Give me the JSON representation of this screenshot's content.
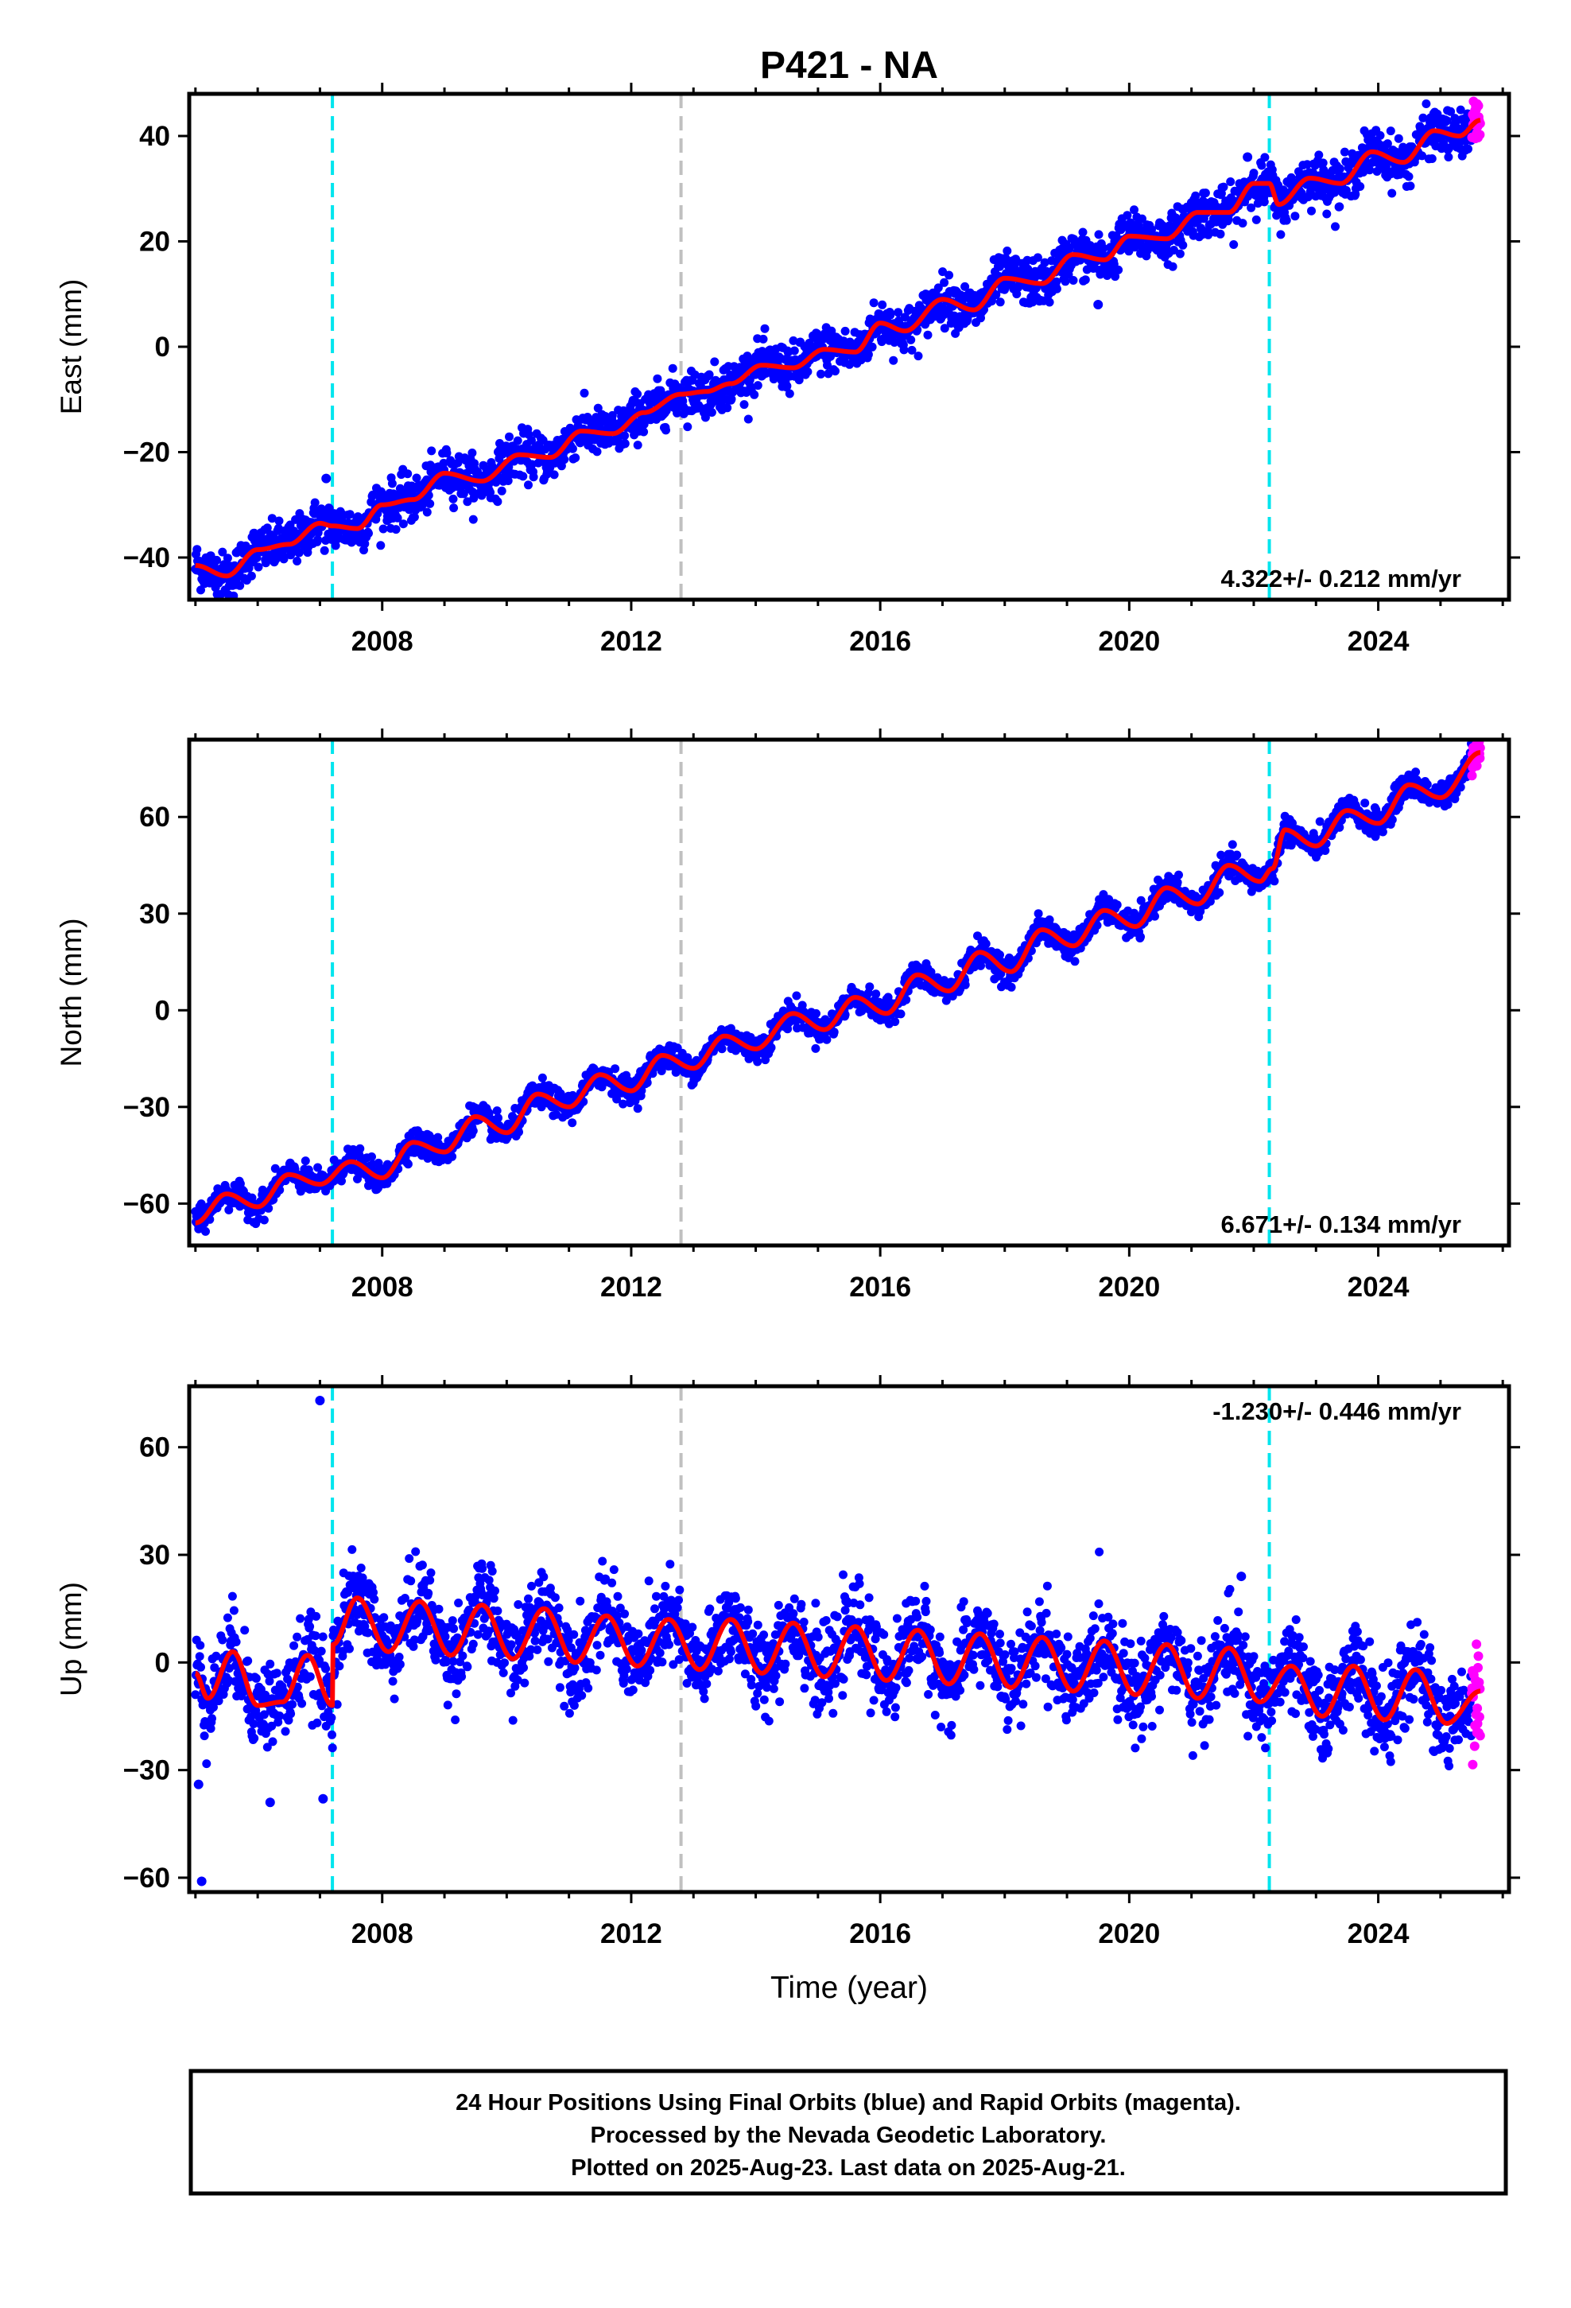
{
  "chart_data": {
    "title": "P421 - NA",
    "type": "scatter",
    "xlabel": "Time (year)",
    "xlim": [
      2004.9,
      2026.1
    ],
    "xticks": [
      2008,
      2012,
      2016,
      2020,
      2024
    ],
    "vertical_markers": [
      {
        "x": 2007.2,
        "style": "dashed",
        "color": "#00e5ee"
      },
      {
        "x": 2012.8,
        "style": "dashed",
        "color": "#c0c0c0"
      },
      {
        "x": 2022.25,
        "style": "dashed",
        "color": "#00e5ee"
      }
    ],
    "series_legend": {
      "final_orbits": "blue",
      "rapid_orbits": "magenta",
      "model_fit": "red"
    },
    "colors": {
      "final": "#0000ff",
      "rapid": "#ff00ff",
      "fit": "#ff0000",
      "frame": "#000000"
    },
    "data_start": 2005.0,
    "rapid_start": 2025.5,
    "data_end": 2025.64,
    "panels": [
      {
        "ylabel": "East (mm)",
        "ylim": [
          -48,
          48
        ],
        "yticks": [
          -40,
          -20,
          0,
          20,
          40
        ],
        "rate_label": "4.322+/- 0.212 mm/yr",
        "rate_position": "bottom-right",
        "fit_knots": [
          [
            2005.0,
            -41.5
          ],
          [
            2005.5,
            -43.5
          ],
          [
            2006.0,
            -38.5
          ],
          [
            2006.5,
            -37.5
          ],
          [
            2007.0,
            -33.5
          ],
          [
            2007.2,
            -34
          ],
          [
            2007.6,
            -34.5
          ],
          [
            2008.0,
            -30
          ],
          [
            2008.5,
            -29
          ],
          [
            2009.0,
            -24
          ],
          [
            2009.6,
            -25.5
          ],
          [
            2010.2,
            -20.5
          ],
          [
            2010.7,
            -21
          ],
          [
            2011.2,
            -16
          ],
          [
            2011.7,
            -16.5
          ],
          [
            2012.2,
            -12.5
          ],
          [
            2012.8,
            -9
          ],
          [
            2013.2,
            -8.5
          ],
          [
            2013.6,
            -7
          ],
          [
            2014.1,
            -3.5
          ],
          [
            2014.6,
            -4
          ],
          [
            2015.1,
            -0.5
          ],
          [
            2015.6,
            -1
          ],
          [
            2016.0,
            4.5
          ],
          [
            2016.4,
            3
          ],
          [
            2017.0,
            9
          ],
          [
            2017.5,
            7
          ],
          [
            2018.0,
            13
          ],
          [
            2018.6,
            12
          ],
          [
            2019.1,
            17.5
          ],
          [
            2019.6,
            16.5
          ],
          [
            2020.0,
            21
          ],
          [
            2020.6,
            20.5
          ],
          [
            2021.1,
            25.5
          ],
          [
            2021.6,
            25.5
          ],
          [
            2022.0,
            31
          ],
          [
            2022.25,
            31
          ],
          [
            2022.4,
            27
          ],
          [
            2022.9,
            32
          ],
          [
            2023.4,
            31
          ],
          [
            2023.9,
            37
          ],
          [
            2024.4,
            35
          ],
          [
            2024.9,
            41
          ],
          [
            2025.3,
            40
          ],
          [
            2025.64,
            43
          ]
        ],
        "scatter_sigma": 2.2,
        "outliers": [
          [
            2007.1,
            -25
          ],
          [
            2019.5,
            8
          ],
          [
            2021.9,
            36
          ]
        ]
      },
      {
        "ylabel": "North (mm)",
        "ylim": [
          -73,
          84
        ],
        "yticks": [
          -60,
          -30,
          0,
          30,
          60
        ],
        "rate_label": "6.671+/- 0.134 mm/yr",
        "rate_position": "bottom-right",
        "fit_knots": [
          [
            2005.0,
            -66
          ],
          [
            2005.5,
            -57
          ],
          [
            2006.0,
            -61
          ],
          [
            2006.5,
            -51
          ],
          [
            2007.0,
            -54
          ],
          [
            2007.5,
            -47
          ],
          [
            2008.0,
            -52
          ],
          [
            2008.5,
            -41
          ],
          [
            2009.0,
            -44
          ],
          [
            2009.5,
            -33
          ],
          [
            2010.0,
            -38
          ],
          [
            2010.5,
            -26
          ],
          [
            2011.0,
            -30
          ],
          [
            2011.5,
            -20
          ],
          [
            2012.0,
            -25
          ],
          [
            2012.5,
            -14
          ],
          [
            2013.0,
            -18
          ],
          [
            2013.5,
            -8
          ],
          [
            2014.0,
            -12
          ],
          [
            2014.6,
            -1
          ],
          [
            2015.1,
            -6
          ],
          [
            2015.6,
            4
          ],
          [
            2016.1,
            -1
          ],
          [
            2016.6,
            11
          ],
          [
            2017.1,
            6
          ],
          [
            2017.6,
            18
          ],
          [
            2018.1,
            12
          ],
          [
            2018.6,
            25
          ],
          [
            2019.1,
            20
          ],
          [
            2019.6,
            31
          ],
          [
            2020.1,
            26
          ],
          [
            2020.6,
            38
          ],
          [
            2021.1,
            33
          ],
          [
            2021.6,
            45
          ],
          [
            2022.1,
            40
          ],
          [
            2022.3,
            44
          ],
          [
            2022.5,
            56
          ],
          [
            2023.0,
            51
          ],
          [
            2023.5,
            62
          ],
          [
            2024.0,
            58
          ],
          [
            2024.5,
            70
          ],
          [
            2025.0,
            66
          ],
          [
            2025.64,
            80
          ]
        ],
        "scatter_sigma": 2.0,
        "outliers": []
      },
      {
        "ylabel": "Up (mm)",
        "ylim": [
          -64,
          77
        ],
        "yticks": [
          -60,
          -30,
          0,
          30,
          60
        ],
        "rate_label": "-1.230+/- 0.446 mm/yr",
        "rate_position": "top-right",
        "fit_knots": [
          [
            2005.0,
            -3
          ],
          [
            2005.2,
            -10
          ],
          [
            2005.6,
            3
          ],
          [
            2006.0,
            -12
          ],
          [
            2006.4,
            -11
          ],
          [
            2006.8,
            2
          ],
          [
            2007.2,
            -12
          ],
          [
            2007.21,
            5
          ],
          [
            2007.6,
            18
          ],
          [
            2008.1,
            3
          ],
          [
            2008.6,
            17
          ],
          [
            2009.1,
            2
          ],
          [
            2009.6,
            16
          ],
          [
            2010.1,
            1
          ],
          [
            2010.6,
            15
          ],
          [
            2011.1,
            0
          ],
          [
            2011.6,
            13
          ],
          [
            2012.1,
            -1
          ],
          [
            2012.6,
            12
          ],
          [
            2013.1,
            -2
          ],
          [
            2013.6,
            12
          ],
          [
            2014.1,
            -3
          ],
          [
            2014.6,
            11
          ],
          [
            2015.1,
            -4
          ],
          [
            2015.6,
            10
          ],
          [
            2016.1,
            -5
          ],
          [
            2016.6,
            9
          ],
          [
            2017.1,
            -6
          ],
          [
            2017.6,
            8
          ],
          [
            2018.1,
            -7
          ],
          [
            2018.6,
            7
          ],
          [
            2019.1,
            -8
          ],
          [
            2019.6,
            6
          ],
          [
            2020.1,
            -9
          ],
          [
            2020.6,
            5
          ],
          [
            2021.1,
            -10
          ],
          [
            2021.6,
            4
          ],
          [
            2022.1,
            -11
          ],
          [
            2022.6,
            -1
          ],
          [
            2023.1,
            -15
          ],
          [
            2023.6,
            -1
          ],
          [
            2024.1,
            -16
          ],
          [
            2024.6,
            -2
          ],
          [
            2025.1,
            -17
          ],
          [
            2025.64,
            -8
          ]
        ],
        "scatter_sigma": 6.0,
        "outliers": [
          [
            2007.0,
            73
          ],
          [
            2005.1,
            -61
          ],
          [
            2006.2,
            -39
          ],
          [
            2007.05,
            -38
          ],
          [
            2005.05,
            -34
          ],
          [
            2021.8,
            24
          ]
        ]
      }
    ]
  },
  "footer": {
    "line1": "24 Hour Positions Using Final Orbits (blue) and Rapid Orbits (magenta).",
    "line2": "Processed by the Nevada Geodetic Laboratory.",
    "line3": "Plotted on 2025-Aug-23. Last data on 2025-Aug-21."
  }
}
